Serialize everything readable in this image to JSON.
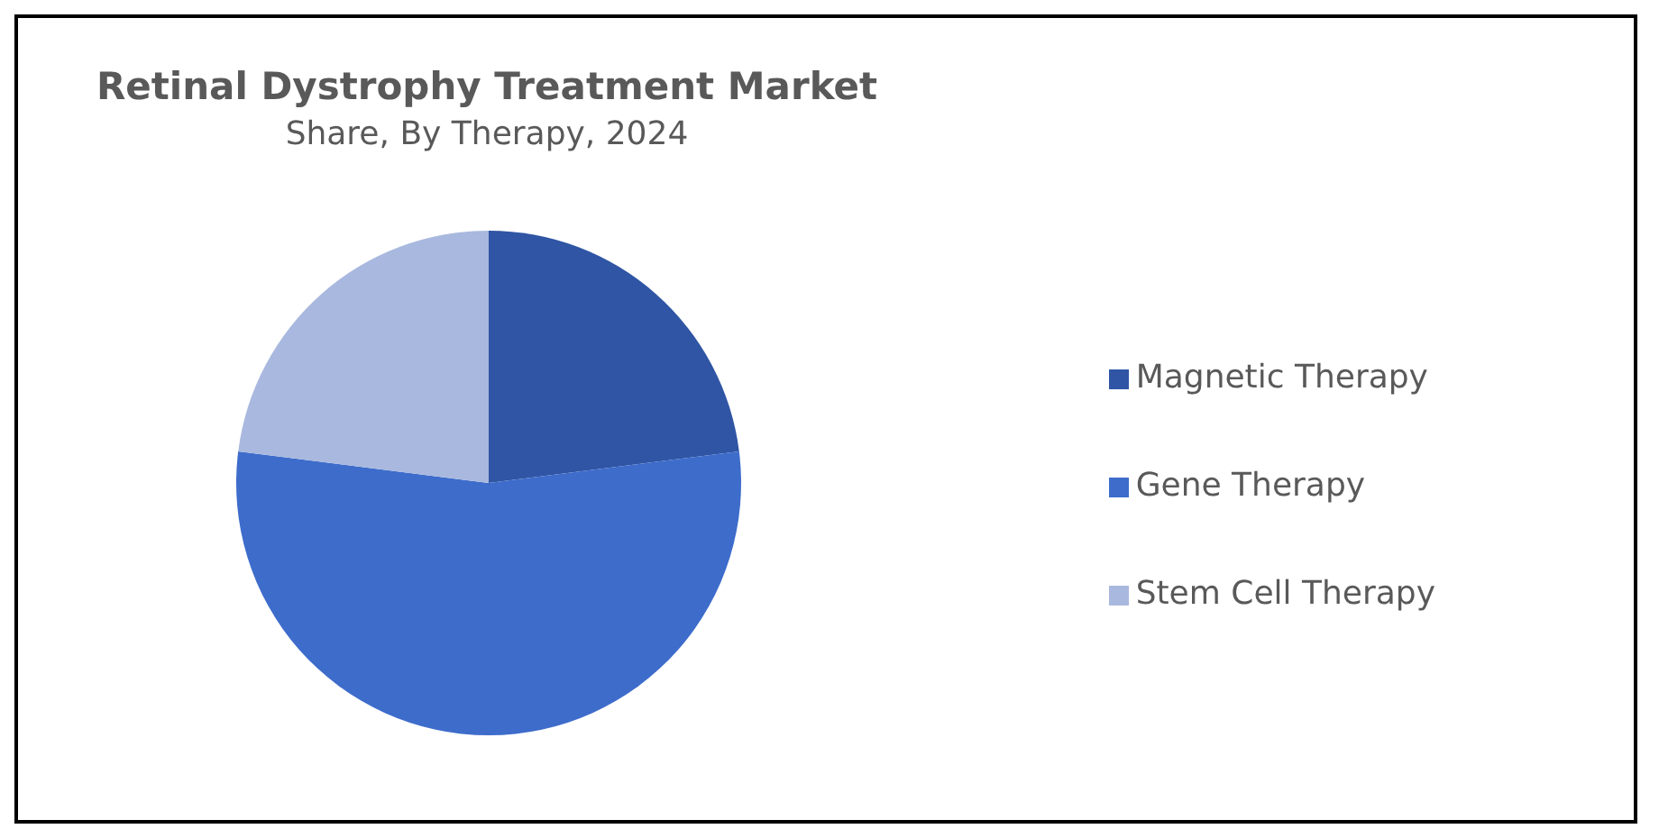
{
  "chart_data": {
    "type": "pie",
    "title": "Retinal Dystrophy Treatment Market",
    "subtitle": "Share, By Therapy, 2024",
    "categories": [
      "Magnetic Therapy",
      "Gene Therapy",
      "Stem Cell Therapy"
    ],
    "values": [
      23,
      54,
      23
    ],
    "colors": [
      "#2f55a4",
      "#3d6ccb",
      "#a9b8de"
    ],
    "legend": "right"
  }
}
